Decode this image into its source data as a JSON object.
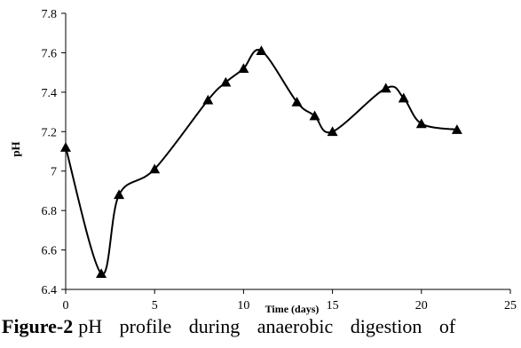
{
  "caption": {
    "label": "Figure-2",
    "text": "pH profile during anaerobic digestion of"
  },
  "chart_data": {
    "type": "line",
    "xlabel": "Time (days)",
    "ylabel": "pH",
    "xlim": [
      0,
      25
    ],
    "ylim": [
      6.4,
      7.8
    ],
    "xticks": [
      "0",
      "5",
      "10",
      "15",
      "20",
      "25"
    ],
    "yticks": [
      "6.4",
      "6.6",
      "6.8",
      "7",
      "7.2",
      "7.4",
      "7.6",
      "7.8"
    ],
    "grid": false,
    "marker": "triangle",
    "line_color": "#000000",
    "series": [
      {
        "x": [
          0,
          2,
          3,
          5,
          8,
          9,
          10,
          11,
          13,
          14,
          15,
          18,
          19,
          20,
          22
        ],
        "y": [
          7.12,
          6.48,
          6.88,
          7.01,
          7.36,
          7.45,
          7.52,
          7.61,
          7.35,
          7.28,
          7.2,
          7.42,
          7.37,
          7.24,
          7.21
        ]
      }
    ]
  }
}
